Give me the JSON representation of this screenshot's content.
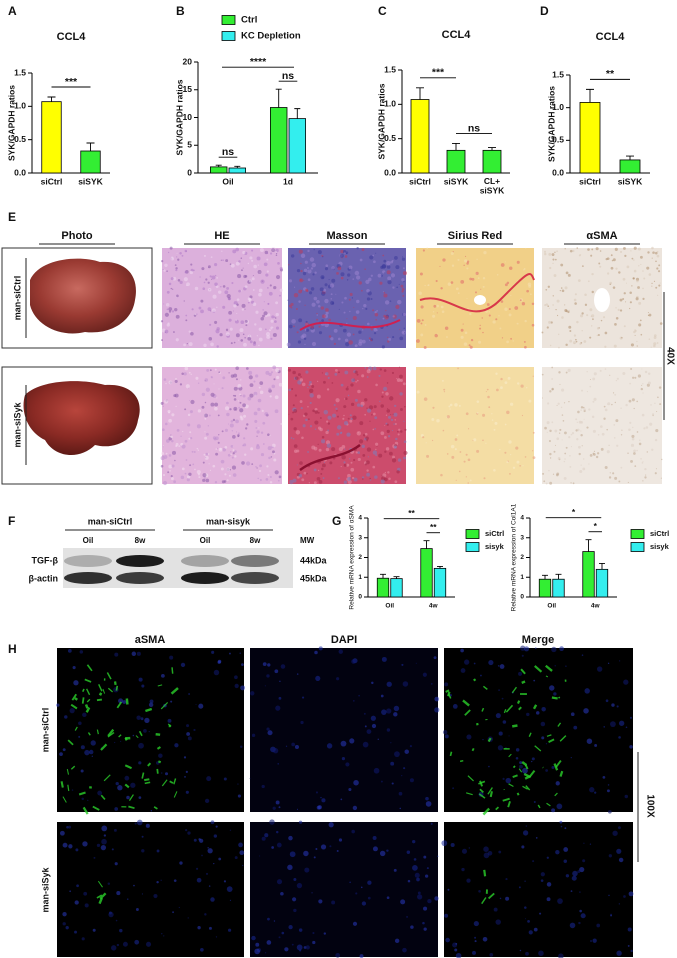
{
  "panel_labels": [
    "A",
    "B",
    "C",
    "D",
    "E",
    "F",
    "G",
    "H"
  ],
  "chart_data": [
    {
      "type": "bar",
      "title": "CCL4",
      "y_label": "SYK/GAPDH ratios",
      "categories": [
        "siCtrl",
        "siSYK"
      ],
      "values": [
        1.07,
        0.33
      ],
      "errors": [
        0.07,
        0.12
      ],
      "colors": [
        "#ffff00",
        "#33ee33"
      ],
      "ylim": [
        0,
        1.5
      ],
      "yticks": [
        {
          "value": 0,
          "label": "0.0"
        },
        0.5,
        {
          "value": 1,
          "label": "1.0"
        },
        1.5
      ],
      "annotations": [
        {
          "text": "***",
          "between": [
            "siCtrl",
            "siSYK"
          ]
        }
      ]
    },
    {
      "type": "grouped_bar",
      "y_label": "SYK/GAPDH ratios",
      "categories": [
        "Oil",
        "1d"
      ],
      "series": [
        {
          "name": "Ctrl",
          "color": "#33ee33",
          "values": [
            1.1,
            11.8
          ],
          "errors": [
            0.3,
            3.3
          ]
        },
        {
          "name": "KC Depletion",
          "color": "#33eeee",
          "values": [
            0.9,
            9.8
          ],
          "errors": [
            0.3,
            1.8
          ]
        }
      ],
      "ylim": [
        0,
        20
      ],
      "yticks": [
        0,
        5,
        10,
        15,
        20
      ],
      "legend": "top",
      "annotations": [
        {
          "text": "ns",
          "within": "Oil"
        },
        {
          "text": "ns",
          "within": "1d"
        },
        {
          "text": "****",
          "between": [
            "Oil",
            "1d"
          ]
        }
      ]
    },
    {
      "type": "bar",
      "title": "CCL4",
      "y_label": "SYK/GAPDH ratios",
      "categories": [
        "siCtrl",
        "siSYK",
        "CL+\nsiSYK"
      ],
      "values": [
        1.07,
        0.33,
        0.33
      ],
      "errors": [
        0.17,
        0.1,
        0.04
      ],
      "colors": [
        "#ffff00",
        "#33ee33",
        "#33ee33"
      ],
      "ylim": [
        0,
        1.5
      ],
      "yticks": [
        {
          "value": 0,
          "label": "0.0"
        },
        0.5,
        {
          "value": 1,
          "label": "1.0"
        },
        1.5
      ],
      "annotations": [
        {
          "text": "***",
          "between": [
            "siCtrl",
            "siSYK"
          ]
        },
        {
          "text": "ns",
          "between": [
            "siSYK",
            "CL+\nsiSYK"
          ]
        }
      ]
    },
    {
      "type": "bar",
      "title": "CCL4",
      "y_label": "SYK/GAPDH ratios",
      "categories": [
        "siCtrl",
        "siSYK"
      ],
      "values": [
        1.08,
        0.2
      ],
      "errors": [
        0.2,
        0.06
      ],
      "colors": [
        "#ffff00",
        "#33ee33"
      ],
      "ylim": [
        0,
        1.5
      ],
      "yticks": [
        {
          "value": 0,
          "label": "0.0"
        },
        0.5,
        {
          "value": 1,
          "label": "1.0"
        },
        1.5
      ],
      "annotations": [
        {
          "text": "**",
          "between": [
            "siCtrl",
            "siSYK"
          ]
        }
      ]
    },
    {
      "type": "grouped_bar",
      "y_label": "Relative mRNA expression of αSMA",
      "categories": [
        "Oil",
        "4w"
      ],
      "series": [
        {
          "name": "siCtrl",
          "color": "#33ee33",
          "values": [
            0.95,
            2.45
          ],
          "errors": [
            0.2,
            0.4
          ]
        },
        {
          "name": "sisyk",
          "color": "#33eeee",
          "values": [
            0.93,
            1.45
          ],
          "errors": [
            0.1,
            0.1
          ]
        }
      ],
      "ylim": [
        0,
        4
      ],
      "yticks": [
        0,
        1,
        2,
        3,
        4
      ],
      "legend": "right",
      "annotations": [
        {
          "text": "**",
          "within": "4w"
        },
        {
          "text": "**",
          "between": [
            "Oil",
            "4w"
          ]
        }
      ]
    },
    {
      "type": "grouped_bar",
      "y_label": "Relative mRNA expression of Col1A1",
      "categories": [
        "Oil",
        "4w"
      ],
      "series": [
        {
          "name": "siCtrl",
          "color": "#33ee33",
          "values": [
            0.9,
            2.3
          ],
          "errors": [
            0.2,
            0.6
          ]
        },
        {
          "name": "sisyk",
          "color": "#33eeee",
          "values": [
            0.9,
            1.4
          ],
          "errors": [
            0.25,
            0.3
          ]
        }
      ],
      "ylim": [
        0,
        4
      ],
      "yticks": [
        0,
        1,
        2,
        3,
        4
      ],
      "legend": "right",
      "annotations": [
        {
          "text": "*",
          "within": "4w"
        },
        {
          "text": "*",
          "between": [
            "Oil",
            "4w"
          ]
        }
      ]
    }
  ],
  "histology": {
    "columns": [
      "Photo",
      "HE",
      "Masson",
      "Sirius Red",
      "αSMA"
    ],
    "rows": [
      "man-siCtrl",
      "man-siSyk"
    ],
    "magnification": "40X"
  },
  "blot": {
    "groups": [
      "man-siCtrl",
      "man-sisyk"
    ],
    "lanes": [
      "Oil",
      "8w",
      "Oil",
      "8w"
    ],
    "mw_header": "MW",
    "bands": [
      {
        "name": "TGF-β",
        "mw": "44kDa"
      },
      {
        "name": "β-actin",
        "mw": "45kDa"
      }
    ]
  },
  "fluorescence": {
    "columns": [
      "aSMA",
      "DAPI",
      "Merge"
    ],
    "rows": [
      "man-siCtrl",
      "man-siSyk"
    ],
    "magnification": "100X"
  }
}
